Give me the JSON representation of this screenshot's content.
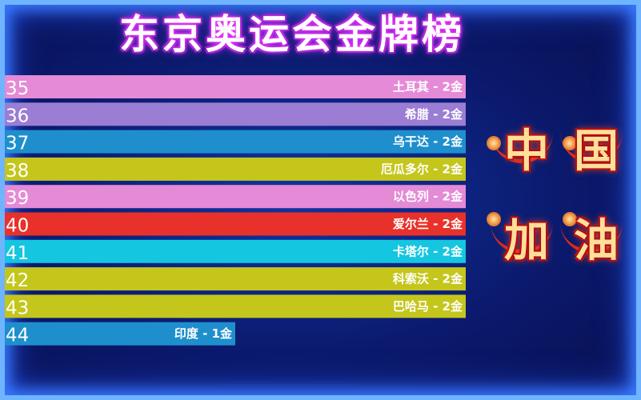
{
  "title": "东京奥运会金牌榜",
  "slogan": [
    "中",
    "国",
    "加",
    "油"
  ],
  "chart_data": {
    "type": "bar",
    "orientation": "horizontal",
    "categories": [
      "土耳其",
      "希腊",
      "乌干达",
      "厄瓜多尔",
      "以色列",
      "爱尔兰",
      "卡塔尔",
      "科索沃",
      "巴哈马",
      "印度"
    ],
    "ranks": [
      "35",
      "36",
      "37",
      "38",
      "39",
      "40",
      "41",
      "42",
      "43",
      "44"
    ],
    "values": [
      2,
      2,
      2,
      2,
      2,
      2,
      2,
      2,
      2,
      1
    ],
    "bar_labels": [
      "土耳其 - 2金",
      "希腊 - 2金",
      "乌干达 - 2金",
      "厄瓜多尔 - 2金",
      "以色列 - 2金",
      "爱尔兰 - 2金",
      "卡塔尔 - 2金",
      "科索沃 - 2金",
      "巴哈马 - 2金",
      "印度 - 1金"
    ],
    "colors": [
      "#e48ad6",
      "#9b7dd4",
      "#1e8fcc",
      "#c4c61c",
      "#e48ad6",
      "#e8312a",
      "#14c6e0",
      "#c4c61c",
      "#c4c61c",
      "#1e8fcc"
    ],
    "xlim": [
      0,
      2
    ],
    "xlabel": "",
    "ylabel": "",
    "grid": false,
    "legend": "none"
  }
}
